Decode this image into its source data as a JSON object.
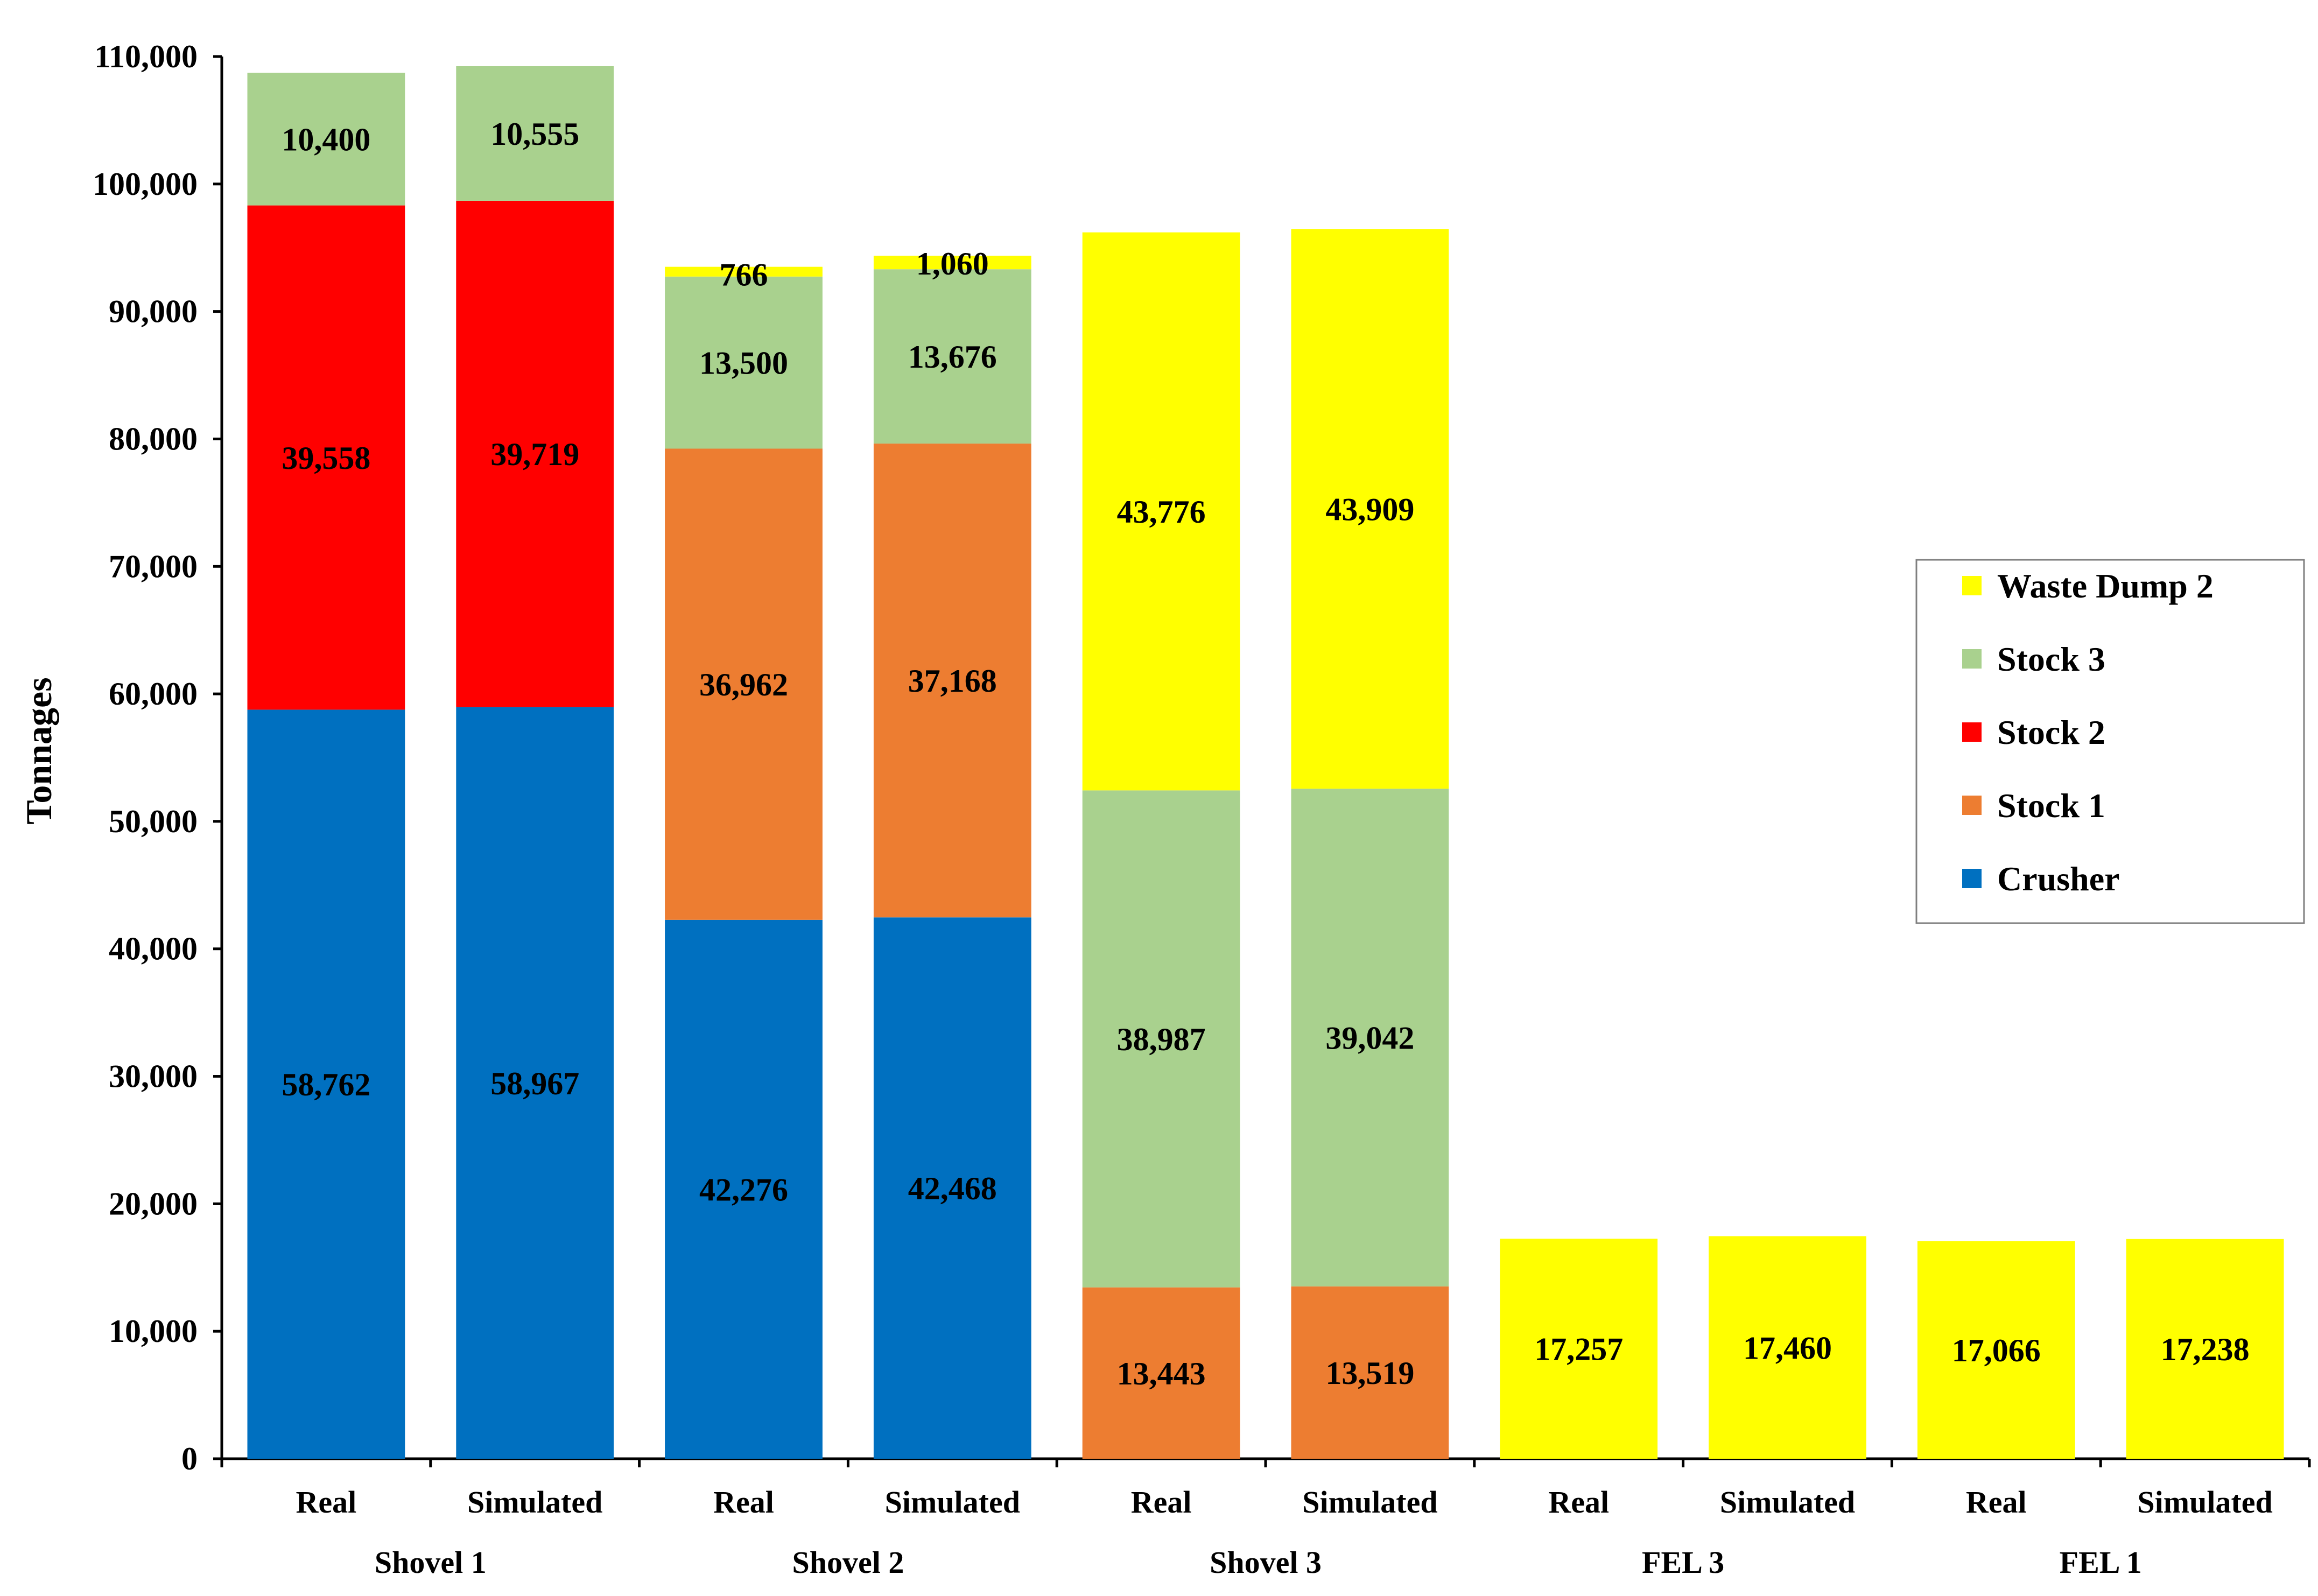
{
  "chart_data": {
    "type": "bar",
    "stacked": true,
    "ylabel": "Tonnages",
    "ylim": [
      0,
      110000
    ],
    "ytick_step": 10000,
    "grid": false,
    "legend_position": "right",
    "groups": [
      "Shovel 1",
      "Shovel 2",
      "Shovel 3",
      "FEL 3",
      "FEL 1"
    ],
    "categories": [
      "Real",
      "Simulated",
      "Real",
      "Simulated",
      "Real",
      "Simulated",
      "Real",
      "Simulated",
      "Real",
      "Simulated"
    ],
    "series": [
      {
        "name": "Crusher",
        "color": "#0070C0",
        "values": [
          58762,
          58967,
          42276,
          42468,
          0,
          0,
          0,
          0,
          0,
          0
        ]
      },
      {
        "name": "Stock 1",
        "color": "#ED7D31",
        "values": [
          0,
          0,
          36962,
          37168,
          13443,
          13519,
          0,
          0,
          0,
          0
        ]
      },
      {
        "name": "Stock 2",
        "color": "#FF0000",
        "values": [
          39558,
          39719,
          0,
          0,
          0,
          0,
          0,
          0,
          0,
          0
        ]
      },
      {
        "name": "Stock 3",
        "color": "#A9D18E",
        "values": [
          10400,
          10555,
          13500,
          13676,
          38987,
          39042,
          0,
          0,
          0,
          0
        ]
      },
      {
        "name": "Waste Dump 2",
        "color": "#FFFF00",
        "values": [
          0,
          0,
          766,
          1060,
          43776,
          43909,
          17257,
          17460,
          17066,
          17238
        ]
      }
    ],
    "legend_order": [
      "Waste Dump 2",
      "Stock 3",
      "Stock 2",
      "Stock 1",
      "Crusher"
    ]
  }
}
